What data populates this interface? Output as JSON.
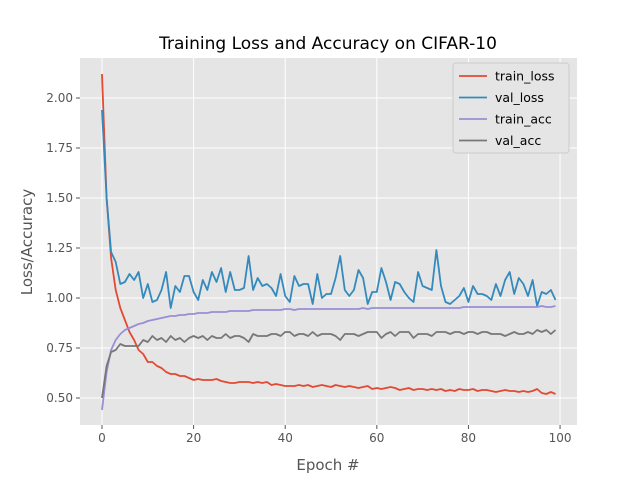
{
  "chart_data": {
    "type": "line",
    "title": "Training Loss and Accuracy on CIFAR-10",
    "xlabel": "Epoch #",
    "ylabel": "Loss/Accuracy",
    "xlim": [
      -4.8,
      103.7
    ],
    "ylim": [
      0.365,
      2.2
    ],
    "xticks": [
      0,
      20,
      40,
      60,
      80,
      100
    ],
    "xtick_labels": [
      "0",
      "20",
      "40",
      "60",
      "80",
      "100"
    ],
    "yticks": [
      0.5,
      0.75,
      1.0,
      1.25,
      1.5,
      1.75,
      2.0
    ],
    "ytick_labels": [
      "0.50",
      "0.75",
      "1.00",
      "1.25",
      "1.50",
      "1.75",
      "2.00"
    ],
    "grid": true,
    "legend_position": "top-right",
    "series": [
      {
        "name": "train_loss",
        "color": "#E24A33",
        "values": [
          2.12,
          1.5,
          1.2,
          1.04,
          0.95,
          0.89,
          0.83,
          0.79,
          0.74,
          0.72,
          0.68,
          0.68,
          0.66,
          0.65,
          0.63,
          0.62,
          0.62,
          0.61,
          0.61,
          0.6,
          0.59,
          0.595,
          0.59,
          0.59,
          0.59,
          0.595,
          0.585,
          0.58,
          0.575,
          0.575,
          0.58,
          0.58,
          0.58,
          0.575,
          0.58,
          0.575,
          0.58,
          0.565,
          0.57,
          0.565,
          0.56,
          0.56,
          0.56,
          0.565,
          0.56,
          0.565,
          0.555,
          0.56,
          0.565,
          0.56,
          0.555,
          0.565,
          0.56,
          0.555,
          0.56,
          0.555,
          0.55,
          0.555,
          0.56,
          0.545,
          0.55,
          0.545,
          0.55,
          0.555,
          0.55,
          0.54,
          0.545,
          0.55,
          0.54,
          0.545,
          0.545,
          0.54,
          0.545,
          0.54,
          0.545,
          0.535,
          0.54,
          0.535,
          0.545,
          0.54,
          0.54,
          0.545,
          0.535,
          0.54,
          0.54,
          0.535,
          0.53,
          0.535,
          0.54,
          0.535,
          0.535,
          0.53,
          0.535,
          0.53,
          0.535,
          0.545,
          0.525,
          0.52,
          0.53,
          0.52
        ]
      },
      {
        "name": "val_loss",
        "color": "#348ABD",
        "values": [
          1.94,
          1.5,
          1.23,
          1.18,
          1.07,
          1.08,
          1.12,
          1.09,
          1.13,
          1.0,
          1.07,
          0.98,
          0.99,
          1.04,
          1.13,
          0.95,
          1.06,
          1.03,
          1.11,
          1.11,
          1.03,
          0.99,
          1.09,
          1.04,
          1.13,
          1.08,
          1.15,
          1.03,
          1.13,
          1.04,
          1.04,
          1.05,
          1.21,
          1.04,
          1.1,
          1.06,
          1.07,
          1.05,
          1.01,
          1.12,
          1.01,
          0.98,
          1.11,
          1.06,
          1.07,
          1.07,
          0.97,
          1.12,
          1.0,
          1.02,
          1.02,
          1.1,
          1.21,
          1.04,
          1.01,
          1.04,
          1.14,
          1.1,
          0.97,
          1.03,
          1.03,
          1.15,
          1.08,
          0.99,
          1.08,
          1.07,
          1.03,
          1.0,
          0.98,
          1.13,
          1.06,
          1.05,
          1.04,
          1.24,
          1.06,
          0.98,
          0.97,
          0.99,
          1.01,
          1.05,
          0.98,
          1.06,
          1.02,
          1.02,
          1.01,
          0.99,
          1.07,
          1.01,
          1.09,
          1.13,
          1.02,
          1.1,
          1.07,
          1.01,
          1.09,
          0.96,
          1.03,
          1.02,
          1.04,
          0.99
        ]
      },
      {
        "name": "train_acc",
        "color": "#988ED5",
        "values": [
          0.44,
          0.63,
          0.74,
          0.79,
          0.82,
          0.84,
          0.85,
          0.86,
          0.87,
          0.875,
          0.885,
          0.89,
          0.895,
          0.9,
          0.905,
          0.91,
          0.91,
          0.915,
          0.915,
          0.92,
          0.92,
          0.925,
          0.925,
          0.925,
          0.93,
          0.93,
          0.93,
          0.93,
          0.935,
          0.935,
          0.935,
          0.935,
          0.935,
          0.94,
          0.94,
          0.94,
          0.94,
          0.94,
          0.94,
          0.94,
          0.945,
          0.945,
          0.94,
          0.945,
          0.945,
          0.945,
          0.945,
          0.945,
          0.945,
          0.945,
          0.945,
          0.945,
          0.945,
          0.945,
          0.945,
          0.945,
          0.945,
          0.95,
          0.945,
          0.95,
          0.95,
          0.95,
          0.95,
          0.95,
          0.95,
          0.95,
          0.95,
          0.95,
          0.95,
          0.95,
          0.95,
          0.95,
          0.95,
          0.95,
          0.95,
          0.95,
          0.95,
          0.95,
          0.95,
          0.955,
          0.955,
          0.955,
          0.955,
          0.955,
          0.955,
          0.955,
          0.955,
          0.955,
          0.955,
          0.955,
          0.955,
          0.955,
          0.955,
          0.955,
          0.955,
          0.955,
          0.96,
          0.955,
          0.955,
          0.96
        ]
      },
      {
        "name": "val_acc",
        "color": "#777777",
        "values": [
          0.5,
          0.66,
          0.73,
          0.74,
          0.77,
          0.76,
          0.76,
          0.76,
          0.76,
          0.79,
          0.78,
          0.81,
          0.79,
          0.8,
          0.78,
          0.81,
          0.79,
          0.8,
          0.78,
          0.8,
          0.81,
          0.8,
          0.81,
          0.79,
          0.81,
          0.8,
          0.8,
          0.82,
          0.8,
          0.81,
          0.81,
          0.8,
          0.78,
          0.82,
          0.81,
          0.81,
          0.81,
          0.82,
          0.82,
          0.81,
          0.83,
          0.83,
          0.81,
          0.82,
          0.82,
          0.81,
          0.83,
          0.81,
          0.82,
          0.82,
          0.82,
          0.81,
          0.79,
          0.82,
          0.82,
          0.82,
          0.81,
          0.82,
          0.83,
          0.83,
          0.83,
          0.8,
          0.82,
          0.83,
          0.81,
          0.83,
          0.83,
          0.83,
          0.8,
          0.82,
          0.82,
          0.82,
          0.81,
          0.83,
          0.83,
          0.83,
          0.82,
          0.83,
          0.83,
          0.82,
          0.83,
          0.83,
          0.82,
          0.83,
          0.83,
          0.82,
          0.82,
          0.82,
          0.81,
          0.82,
          0.83,
          0.82,
          0.82,
          0.83,
          0.82,
          0.84,
          0.83,
          0.84,
          0.82,
          0.84
        ]
      }
    ]
  }
}
